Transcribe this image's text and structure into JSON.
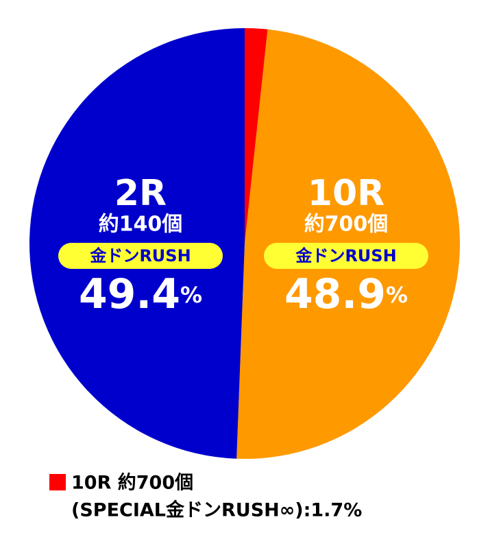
{
  "chart_data": {
    "type": "pie",
    "values": [
      1.7,
      48.9,
      49.4
    ],
    "colors": [
      "#ff0000",
      "#ff9900",
      "#0000cc"
    ],
    "labels": [
      null,
      {
        "round": "10R",
        "balls": "約700個",
        "rush": "金ドンRUSH",
        "value_label": "48.9%"
      },
      {
        "round": "2R",
        "balls": "約140個",
        "rush": "金ドンRUSH",
        "value_label": "49.4%"
      }
    ],
    "legend": {
      "line1": "10R 約700個",
      "line2": "(SPECIAL金ドンRUSH∞):1.7%"
    }
  }
}
